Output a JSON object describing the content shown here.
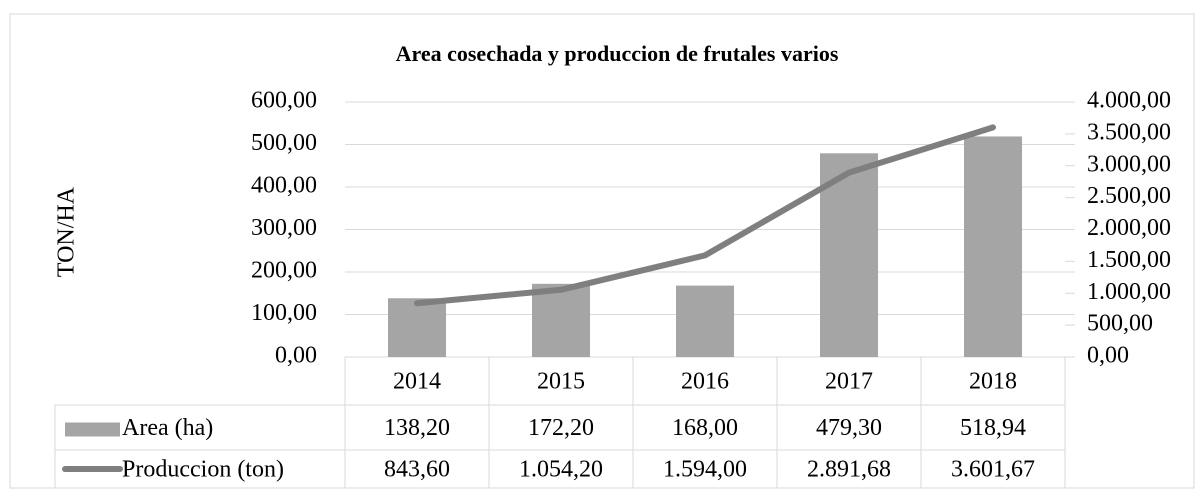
{
  "chart_data": {
    "type": "bar",
    "title": "Area cosechada y produccion de frutales varios",
    "y_label": "TON/HA",
    "categories": [
      "2014",
      "2015",
      "2016",
      "2017",
      "2018"
    ],
    "series": [
      {
        "name": "Area (ha)",
        "type": "bar",
        "color": "#a5a5a5",
        "values": [
          138.2,
          172.2,
          168.0,
          479.3,
          518.94
        ],
        "value_labels": [
          "138,20",
          "172,20",
          "168,00",
          "479,30",
          "518,94"
        ]
      },
      {
        "name": "Produccion (ton)",
        "type": "line",
        "axis": "y2",
        "color": "#7f7f7f",
        "values": [
          843.6,
          1054.2,
          1594.0,
          2891.68,
          3601.67
        ],
        "value_labels": [
          "843,60",
          "1.054,20",
          "1.594,00",
          "2.891,68",
          "3.601,67"
        ]
      }
    ],
    "ylim": [
      0,
      600
    ],
    "yticks": [
      {
        "value": 0,
        "label": "0,00"
      },
      {
        "value": 100,
        "label": "100,00"
      },
      {
        "value": 200,
        "label": "200,00"
      },
      {
        "value": 300,
        "label": "300,00"
      },
      {
        "value": 400,
        "label": "400,00"
      },
      {
        "value": 500,
        "label": "500,00"
      },
      {
        "value": 600,
        "label": "600,00"
      }
    ],
    "y2lim": [
      0,
      4000
    ],
    "y2ticks": [
      {
        "value": 0,
        "label": "0,00"
      },
      {
        "value": 500,
        "label": "500,00"
      },
      {
        "value": 1000,
        "label": "1.000,00"
      },
      {
        "value": 1500,
        "label": "1.500,00"
      },
      {
        "value": 2000,
        "label": "2.000,00"
      },
      {
        "value": 2500,
        "label": "2.500,00"
      },
      {
        "value": 3000,
        "label": "3.000,00"
      },
      {
        "value": 3500,
        "label": "3.500,00"
      },
      {
        "value": 4000,
        "label": "4.000,00"
      }
    ],
    "grid": true
  }
}
